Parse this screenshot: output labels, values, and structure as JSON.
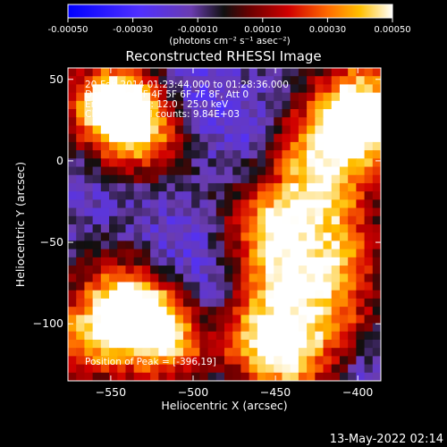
{
  "colors": {
    "background": "#000000",
    "foreground": "#ffffff",
    "colormap": [
      "#0000ff",
      "#4030ff",
      "#5a3cc0",
      "#3a2a80",
      "#000000",
      "#6a0000",
      "#c80000",
      "#ff5a00",
      "#ffb000",
      "#ffffff"
    ]
  },
  "colorbar": {
    "ticks": [
      "-0.00050",
      "-0.00030",
      "-0.00010",
      "0.00010",
      "0.00030",
      "0.00050"
    ],
    "tick_values": [
      -0.0005,
      -0.0003,
      -0.0001,
      0.0001,
      0.0003,
      0.0005
    ],
    "range": [
      -0.0005,
      0.0005
    ],
    "unit_label": "(photons cm⁻² s⁻¹ asec⁻²)"
  },
  "chart_data": {
    "type": "heatmap",
    "title": "Reconstructed RHESSI Image",
    "xlabel": "Heliocentric X (arcsec)",
    "ylabel": "Heliocentric Y (arcsec)",
    "xlim": [
      -576,
      -386
    ],
    "ylim": [
      -135,
      57
    ],
    "xticks": [
      -550,
      -500,
      -450,
      -400
    ],
    "yticks": [
      50,
      0,
      -50,
      -100
    ],
    "xtick_labels": [
      "−550",
      "−500",
      "−450",
      "−400"
    ],
    "ytick_labels": [
      "50",
      "0",
      "−50",
      "−100"
    ],
    "value_range": [
      -0.0005,
      0.0005
    ],
    "grid": false,
    "annotations": [
      "20-Feb-2014 01:23:44.000 to 01:28:36.000",
      "Detectors: 3F 4F 5F 6F 7F 8F, Att 0",
      "Energy Range: 12.0 - 25.0 keV",
      "Clean",
      "Total counts: 9.84E+03"
    ],
    "peak_label": "Position of Peak = [-396,19]",
    "peak_position": [
      -396,
      19
    ],
    "bright_regions": [
      {
        "x": -540,
        "y": 30,
        "strength": 0.9
      },
      {
        "x": -552,
        "y": 35,
        "strength": 0.7
      },
      {
        "x": -530,
        "y": 15,
        "strength": 0.5
      },
      {
        "x": -528,
        "y": -98,
        "strength": 1.0
      },
      {
        "x": -545,
        "y": -85,
        "strength": 0.7
      },
      {
        "x": -512,
        "y": -112,
        "strength": 0.6
      },
      {
        "x": -565,
        "y": -110,
        "strength": 0.7
      },
      {
        "x": -452,
        "y": -40,
        "strength": 0.9
      },
      {
        "x": -445,
        "y": -75,
        "strength": 0.8
      },
      {
        "x": -460,
        "y": -110,
        "strength": 0.9
      },
      {
        "x": -440,
        "y": -125,
        "strength": 0.7
      },
      {
        "x": -420,
        "y": -20,
        "strength": 0.8
      },
      {
        "x": -410,
        "y": -60,
        "strength": 0.7
      },
      {
        "x": -396,
        "y": 19,
        "strength": 1.0
      },
      {
        "x": -400,
        "y": 40,
        "strength": 0.7
      },
      {
        "x": -430,
        "y": 10,
        "strength": 0.6
      },
      {
        "x": -415,
        "y": -100,
        "strength": 0.6
      }
    ],
    "dim_regions": [
      {
        "x": -505,
        "y": 45,
        "strength": 0.8
      },
      {
        "x": -470,
        "y": 20,
        "strength": 0.7
      },
      {
        "x": -495,
        "y": -85,
        "strength": 0.9
      },
      {
        "x": -510,
        "y": -50,
        "strength": 0.6
      },
      {
        "x": -470,
        "y": -130,
        "strength": 0.5
      },
      {
        "x": -560,
        "y": -20,
        "strength": 0.4
      },
      {
        "x": -400,
        "y": -125,
        "strength": 0.6
      }
    ]
  },
  "footer": {
    "date": "13-May-2022 02:14"
  }
}
